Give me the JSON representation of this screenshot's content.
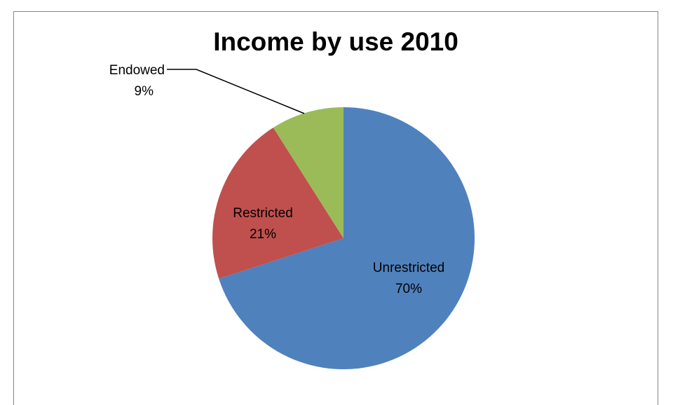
{
  "chart_data": {
    "type": "pie",
    "title": "Income by use 2010",
    "slices": [
      {
        "label": "Unrestricted",
        "percent_label": "70%",
        "value": 70,
        "color": "#4f81bd"
      },
      {
        "label": "Restricted",
        "percent_label": "21%",
        "value": 21,
        "color": "#c0504d"
      },
      {
        "label": "Endowed",
        "percent_label": "9%",
        "value": 9,
        "color": "#9bbb59"
      }
    ],
    "legend": "none",
    "start_angle": "12 o'clock",
    "direction": "clockwise"
  }
}
